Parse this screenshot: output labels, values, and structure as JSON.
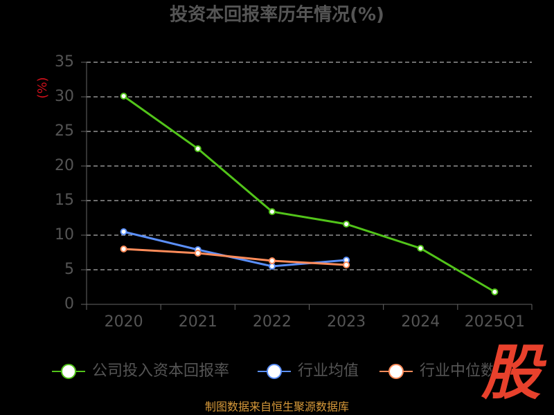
{
  "chart_data": {
    "type": "line",
    "title": "投资本回报率历年情况(%)",
    "y_label": "(%)",
    "categories": [
      "2020",
      "2021",
      "2022",
      "2023",
      "2024",
      "2025Q1"
    ],
    "series": [
      {
        "name": "公司投入资本回报率",
        "color": "#52c41a",
        "values": [
          30.1,
          22.5,
          13.4,
          11.6,
          8.1,
          1.8
        ]
      },
      {
        "name": "行业均值",
        "color": "#5b8ff9",
        "values": [
          10.5,
          7.9,
          5.5,
          6.4,
          null,
          null
        ]
      },
      {
        "name": "行业中位数",
        "color": "#ff8c5a",
        "values": [
          8.0,
          7.4,
          6.3,
          5.7,
          null,
          null
        ]
      }
    ],
    "ylim": [
      0,
      35
    ],
    "yticks": [
      0,
      5,
      10,
      15,
      20,
      25,
      30,
      35
    ],
    "grid": true,
    "source": "制图数据来自恒生聚源数据库",
    "logo": "股"
  }
}
